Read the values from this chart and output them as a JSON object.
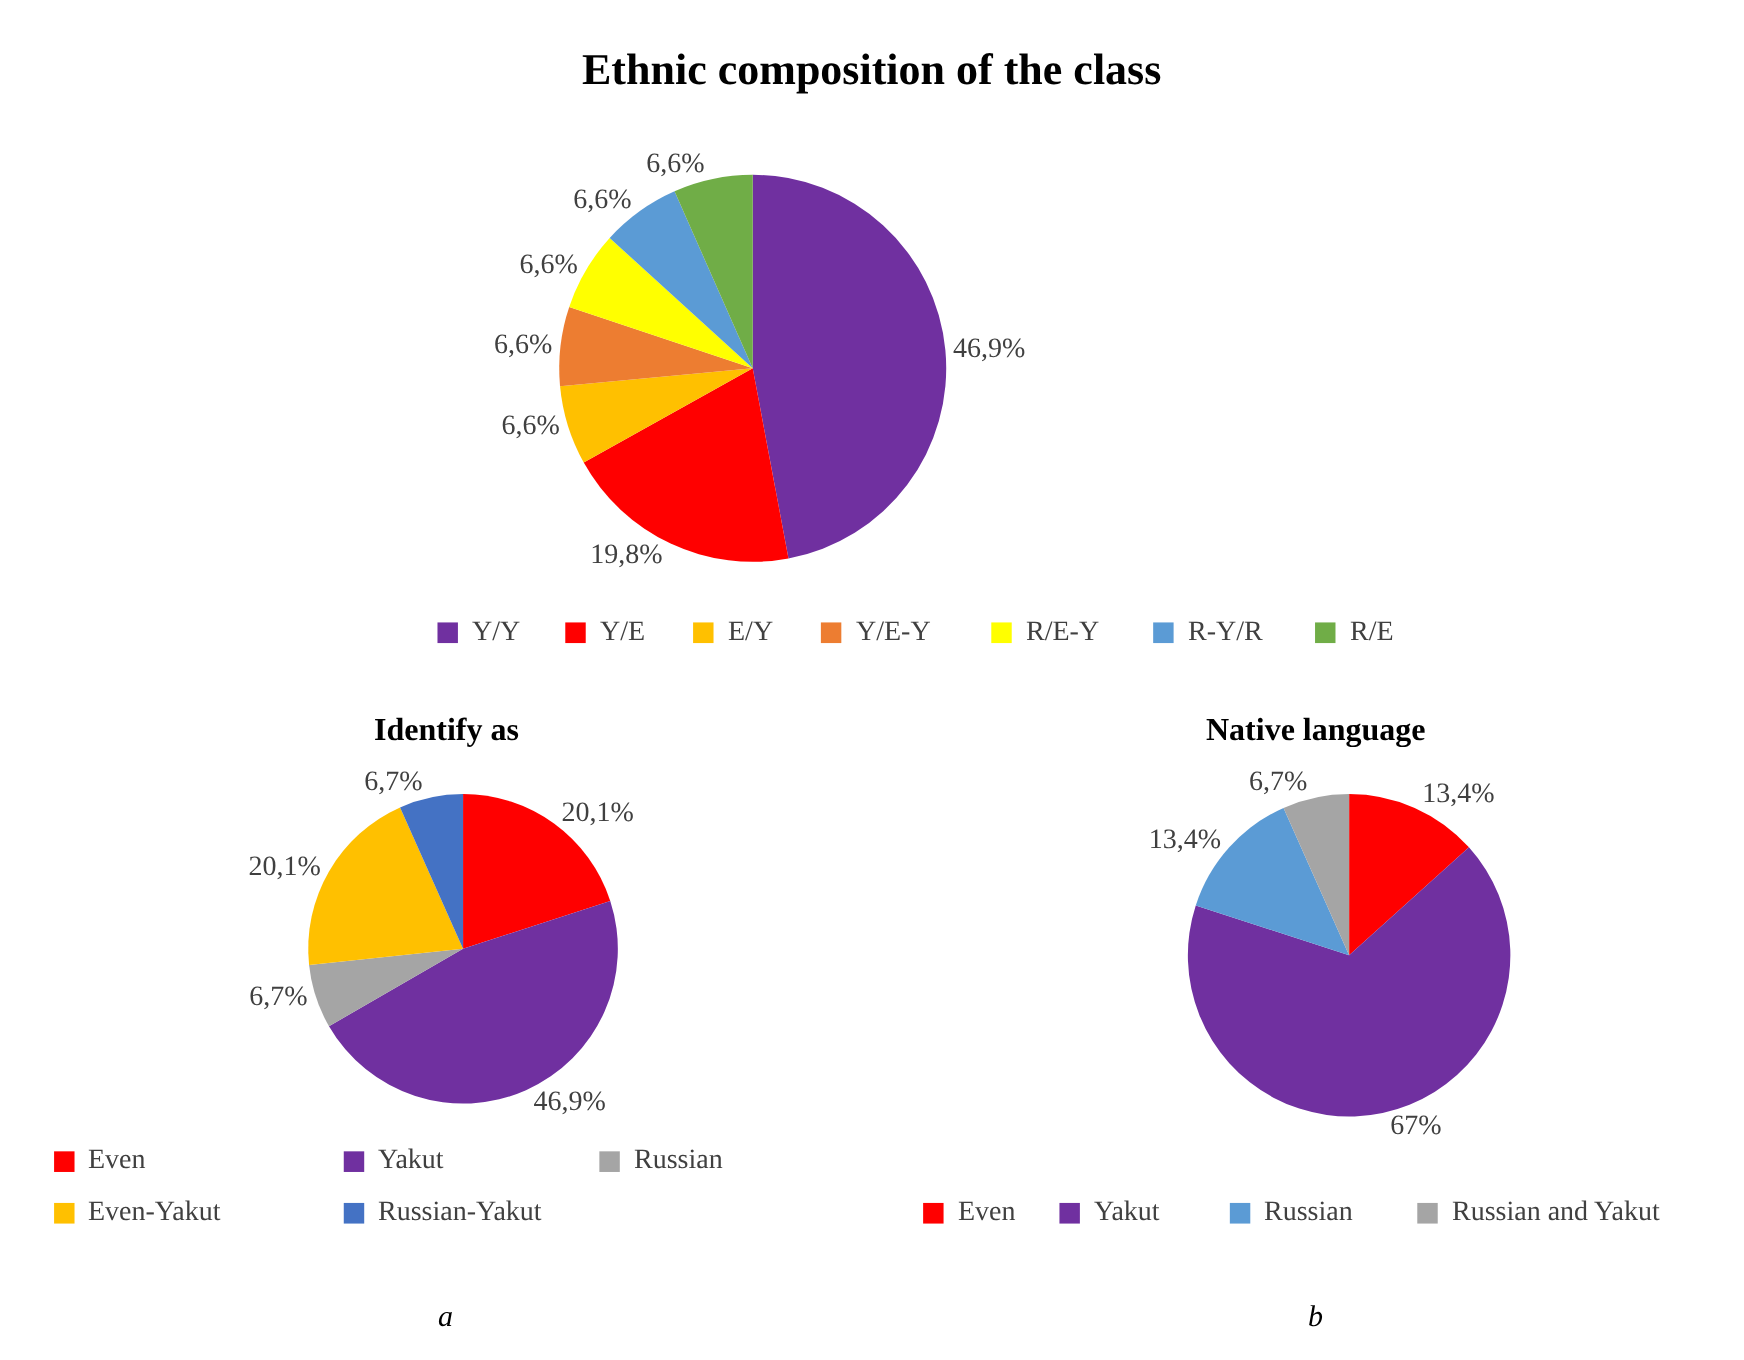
{
  "chart_data": [
    {
      "type": "pie",
      "title": "Ethnic composition of the class",
      "categories": [
        "Y/Y",
        "Y/E",
        "E/Y",
        "Y/E-Y",
        "R/E-Y",
        "R-Y/R",
        "R/E"
      ],
      "values": [
        46.9,
        19.8,
        6.6,
        6.6,
        6.6,
        6.6,
        6.6
      ],
      "value_labels": [
        "46,9%",
        "19,8%",
        "6,6%",
        "6,6%",
        "6,6%",
        "6,6%",
        "6,6%"
      ],
      "colors": [
        "#7030a0",
        "#ff0000",
        "#ffc000",
        "#ed7d31",
        "#ffff00",
        "#5b9bd5",
        "#70ad47"
      ],
      "legend": "bottom"
    },
    {
      "type": "pie",
      "title": "Identify as",
      "categories": [
        "Even",
        "Yakut",
        "Russian",
        "Even-Yakut",
        "Russian-Yakut"
      ],
      "values": [
        20.1,
        46.9,
        6.7,
        20.1,
        6.7
      ],
      "value_labels": [
        "20,1%",
        "46,9%",
        "6,7%",
        "20,1%",
        "6,7%"
      ],
      "colors": [
        "#ff0000",
        "#7030a0",
        "#a5a5a5",
        "#ffc000",
        "#4472c4"
      ],
      "legend": "bottom",
      "annotations": [
        "a"
      ]
    },
    {
      "type": "pie",
      "title": "Native language",
      "categories": [
        "Even",
        "Yakut",
        "Russian",
        "Russian and Yakut"
      ],
      "values": [
        13.4,
        67,
        13.4,
        6.7
      ],
      "value_labels": [
        "13,4%",
        "67%",
        "13,4%",
        "6,7%"
      ],
      "colors": [
        "#ff0000",
        "#7030a0",
        "#5b9bd5",
        "#a5a5a5"
      ],
      "legend": "bottom",
      "annotations": [
        "b"
      ]
    }
  ]
}
